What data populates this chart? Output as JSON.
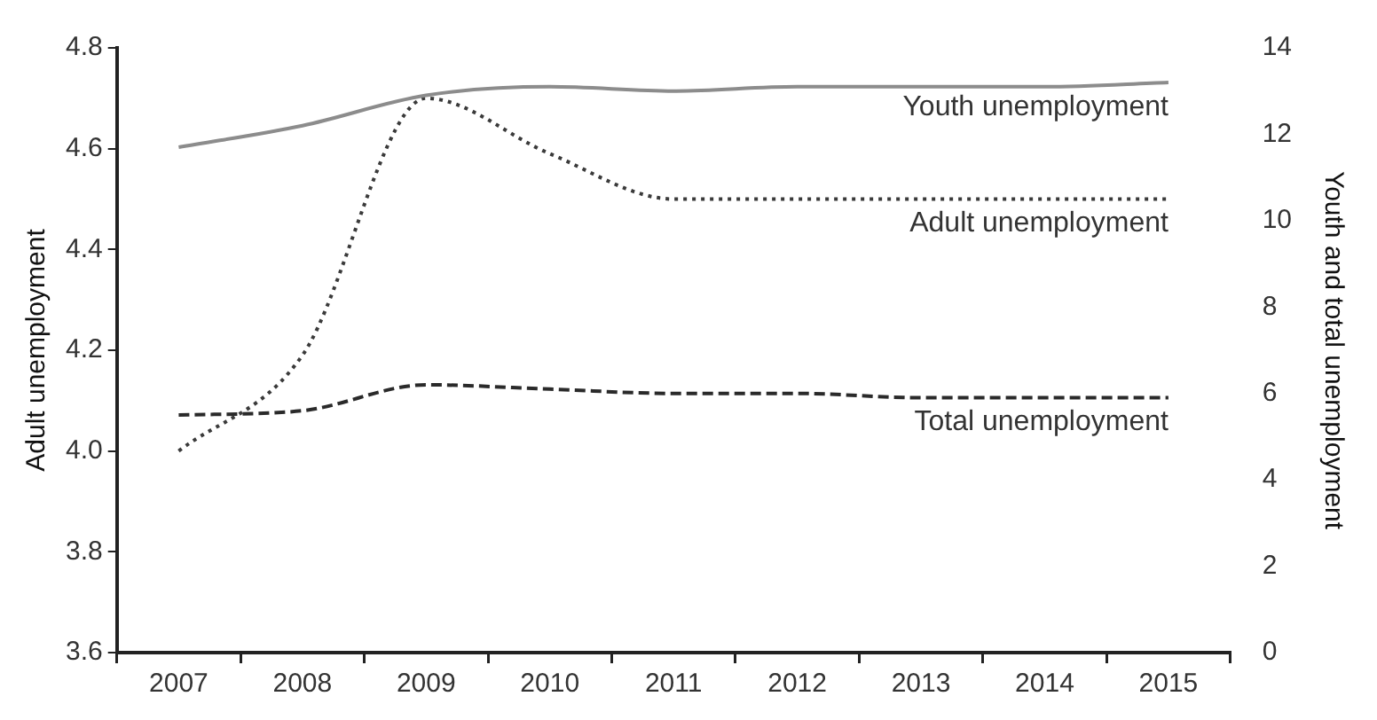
{
  "chart_data": {
    "type": "line",
    "categories": [
      "2007",
      "2008",
      "2009",
      "2010",
      "2011",
      "2012",
      "2013",
      "2014",
      "2015"
    ],
    "ylabel": "Adult unemployment",
    "y2label": "Youth and total unemployment",
    "ylim": [
      3.6,
      4.8
    ],
    "yticks": [
      3.6,
      3.8,
      {
        "value": 4,
        "label": "4.0"
      },
      4.2,
      4.4,
      4.6,
      4.8
    ],
    "y2lim": [
      0,
      14
    ],
    "y2ticks": [
      0,
      2,
      4,
      6,
      8,
      10,
      12,
      14
    ],
    "grid": false,
    "legend": false,
    "marker": "none",
    "series": [
      {
        "name": "Youth unemployment",
        "color": "#8c8c8c",
        "axis": "y2",
        "line_style": "solid",
        "values": [
          11.7,
          12.2,
          12.9,
          13.1,
          13.0,
          13.1,
          13.1,
          13.1,
          13.2
        ]
      },
      {
        "name": "Adult unemployment",
        "color": "#3a3a3a",
        "axis": "y",
        "line_style": "dotted",
        "values": [
          4.0,
          4.19,
          4.7,
          4.59,
          4.5,
          4.5,
          4.5,
          4.5,
          4.5
        ]
      },
      {
        "name": "Total unemployment",
        "color": "#2a2a2a",
        "axis": "y2",
        "line_style": "dashed",
        "values": [
          5.5,
          5.6,
          6.2,
          6.1,
          6.0,
          6.0,
          5.9,
          5.9,
          5.9
        ]
      }
    ]
  }
}
